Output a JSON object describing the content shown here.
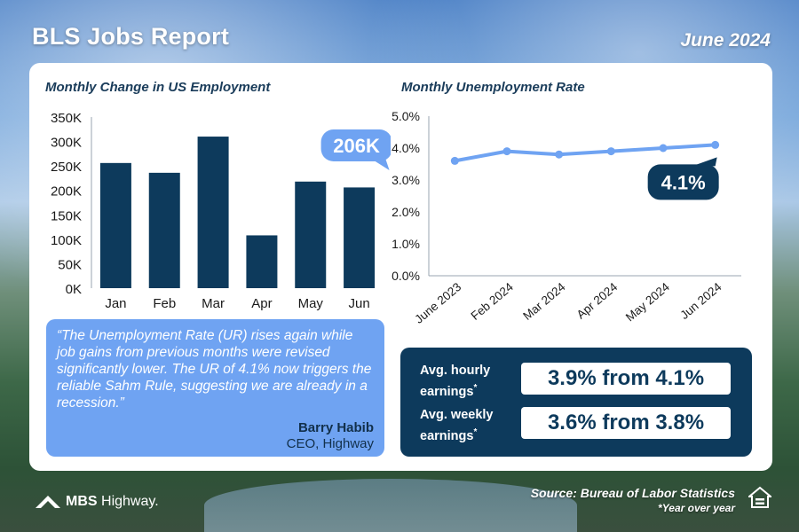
{
  "header": {
    "title": "BLS Jobs Report",
    "date": "June 2024"
  },
  "chart_data": [
    {
      "type": "bar",
      "title": "Monthly Change in US Employment",
      "categories": [
        "Jan",
        "Feb",
        "Mar",
        "Apr",
        "May",
        "Jun"
      ],
      "values": [
        256000,
        236000,
        310000,
        108000,
        218000,
        206000
      ],
      "ylim": [
        0,
        350000
      ],
      "yticks": [
        "0K",
        "50K",
        "100K",
        "150K",
        "200K",
        "250K",
        "300K",
        "350K"
      ],
      "callout": "206K",
      "color": "#0d3a5c",
      "callout_color": "#6fa3f2",
      "grid": false
    },
    {
      "type": "line",
      "title": "Monthly Unemployment Rate",
      "categories": [
        "June 2023",
        "Feb 2024",
        "Mar 2024",
        "Apr 2024",
        "May 2024",
        "Jun 2024"
      ],
      "values": [
        3.6,
        3.9,
        3.8,
        3.9,
        4.0,
        4.1
      ],
      "ylim": [
        0,
        5
      ],
      "yticks": [
        "0.0%",
        "1.0%",
        "2.0%",
        "3.0%",
        "4.0%",
        "5.0%"
      ],
      "callout": "4.1%",
      "color": "#6fa3f2",
      "callout_color": "#0d3a5c",
      "grid": false
    }
  ],
  "quote": {
    "text": "“The Unemployment Rate (UR) rises again while job gains from previous months were revised significantly lower. The UR of 4.1% now triggers the reliable Sahm Rule, suggesting we are already in a recession.”",
    "author": "Barry Habib",
    "role": "CEO, Highway"
  },
  "earnings": {
    "hourly_label_1": "Avg. hourly",
    "hourly_label_2": "earnings",
    "hourly_value": "3.9% from 4.1%",
    "weekly_label_1": "Avg. weekly",
    "weekly_label_2": "earnings",
    "weekly_value": "3.6% from 3.8%",
    "asterisk": "*"
  },
  "footer": {
    "logo_part1": "MBS",
    "logo_part2": "Highway.",
    "source": "Source: Bureau of Labor Statistics",
    "footnote": "*Year over year",
    "logo_icon": "chevron-logo-icon",
    "housing_icon": "equal-housing-icon"
  }
}
